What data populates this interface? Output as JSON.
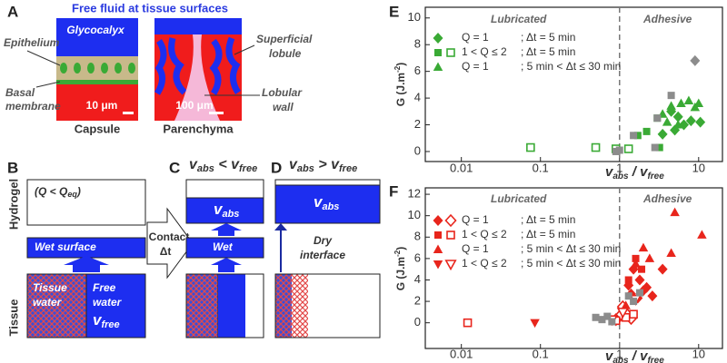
{
  "panels": {
    "A": {
      "label": "A",
      "title": "Free fluid at tissue surfaces",
      "glycocalyx": "Glycocalyx",
      "epithelium": "Epithelium",
      "basal": [
        "Basal",
        "membrane"
      ],
      "scale1": "10 μm",
      "capsule": "Capsule",
      "scale2": "100 μm",
      "parenchyma": "Parenchyma",
      "superficial": [
        "Superficial",
        "lobule"
      ],
      "lobular": [
        "Lobular",
        "wall"
      ]
    },
    "B": {
      "label": "B",
      "hydrogel": "Hydrogel",
      "q": [
        "(Q < Q",
        "eq",
        ")"
      ],
      "wet_surface": "Wet surface",
      "tissue": "Tissue",
      "tissue_water": [
        "Tissue",
        "water"
      ],
      "free_water": [
        "Free",
        "water"
      ],
      "v_free": [
        "v",
        "free"
      ],
      "contact": [
        "Contact",
        "Δt"
      ]
    },
    "C": {
      "label": "C",
      "cond": [
        "v",
        "abs",
        " < ",
        "v",
        "free"
      ],
      "v_abs": [
        "v",
        "abs"
      ],
      "wet": "Wet"
    },
    "D": {
      "label": "D",
      "cond": [
        "v",
        "abs",
        " > ",
        "v",
        "free"
      ],
      "v_abs": [
        "v",
        "abs"
      ],
      "dry": [
        "Dry",
        "interface"
      ]
    }
  },
  "chart_data": [
    {
      "type": "scatter",
      "label": "E",
      "ylabel": [
        "G (J.m",
        "-2",
        ")"
      ],
      "xlabel": [
        "v",
        "abs",
        " / ",
        "v",
        "free"
      ],
      "log_x": true,
      "xlim": [
        0.0035,
        20
      ],
      "ylim": [
        -0.75,
        10.8
      ],
      "xticks": [
        0.01,
        0.1,
        1,
        10
      ],
      "yticks": [
        0,
        2,
        4,
        6,
        8,
        10
      ],
      "regions": [
        "Lubricated",
        "Adhesive"
      ],
      "divider": 1,
      "series": [
        {
          "name": [
            "Q = 1",
            "; Δt = 5 min"
          ],
          "color": "#3aaa35",
          "marker": "diamond",
          "x": [
            4.5,
            5.5,
            6.5,
            8,
            10.5,
            3.5,
            5
          ],
          "values": [
            3.0,
            2.6,
            2.0,
            2.3,
            2.2,
            1.3,
            1.6
          ],
          "hollow": [
            false,
            false,
            false,
            false,
            false,
            false,
            false
          ]
        },
        {
          "name": [
            "1 < Q ≤ 2",
            "; Δt = 5 min"
          ],
          "color": "#3aaa35",
          "marker": "square",
          "x": [
            1.7,
            2.2,
            3.0,
            0.075,
            0.5,
            0.9,
            1.3,
            3.2
          ],
          "values": [
            1.2,
            1.5,
            2.5,
            0.3,
            0.3,
            0.2,
            0.2,
            0.3
          ],
          "hollow": [
            false,
            false,
            false,
            true,
            true,
            true,
            true,
            false
          ]
        },
        {
          "name": [
            "Q = 1",
            "; 5 min < Δt ≤ 30 min"
          ],
          "color": "#3aaa35",
          "marker": "triangle",
          "x": [
            3.5,
            4.5,
            6,
            7.5,
            9,
            10,
            4,
            5.5
          ],
          "values": [
            2.8,
            3.4,
            3.6,
            3.8,
            3.3,
            3.6,
            2.2,
            2.0
          ],
          "hollow": [
            false,
            false,
            false,
            false,
            false,
            false,
            false,
            false
          ]
        },
        {
          "color": "#8c8c8c",
          "marker": "diamond",
          "x": [
            9
          ],
          "values": [
            6.8
          ],
          "hollow": [
            false
          ]
        },
        {
          "color": "#8c8c8c",
          "marker": "square",
          "x": [
            4.5,
            3.0,
            1.5,
            2.8,
            1.0,
            0.9
          ],
          "values": [
            4.2,
            2.5,
            1.2,
            0.3,
            0.1,
            0.0
          ],
          "hollow": [
            false,
            false,
            false,
            false,
            false,
            false
          ]
        }
      ]
    },
    {
      "type": "scatter",
      "label": "F",
      "ylabel": [
        "G (J.m",
        "-2",
        ")"
      ],
      "xlabel": [
        "v",
        "abs",
        " / ",
        "v",
        "free"
      ],
      "log_x": true,
      "xlim": [
        0.0035,
        20
      ],
      "ylim": [
        -2.4,
        12.6
      ],
      "xticks": [
        0.01,
        0.1,
        1,
        10
      ],
      "yticks": [
        0,
        2,
        4,
        6,
        8,
        10,
        12
      ],
      "regions": [
        "Lubricated",
        "Adhesive"
      ],
      "divider": 1,
      "series": [
        {
          "name": [
            "Q = 1",
            "; Δt = 5 min"
          ],
          "color": "#e8251c",
          "marker": "diamond",
          "x": [
            1.3,
            1.5,
            1.8,
            2.2,
            2.6,
            3.5,
            1.4,
            1.7,
            2.0,
            1.0,
            1.2,
            1.4,
            0.9,
            1.1
          ],
          "values": [
            3.5,
            5.0,
            4.0,
            3.3,
            2.5,
            5.0,
            2.7,
            2.3,
            3.0,
            0.6,
            0.9,
            0.4,
            0.3,
            1.5
          ],
          "hollow": [
            false,
            false,
            false,
            false,
            false,
            false,
            false,
            false,
            false,
            true,
            true,
            true,
            true,
            true
          ]
        },
        {
          "name": [
            "1 < Q ≤ 2",
            "; Δt = 5 min"
          ],
          "color": "#e8251c",
          "marker": "square",
          "x": [
            0.012,
            1.6,
            1.3,
            1.9,
            1.2,
            1.5,
            0.9
          ],
          "values": [
            0,
            6.0,
            4.0,
            5.0,
            0.5,
            0.8,
            0.2
          ],
          "hollow": [
            true,
            false,
            false,
            false,
            true,
            true,
            true
          ]
        },
        {
          "name": [
            "Q = 1",
            "; 5 min < Δt ≤ 30 min"
          ],
          "color": "#e8251c",
          "marker": "triangle",
          "x": [
            5,
            11,
            2.0,
            1.6,
            2.4,
            4.5,
            1.2
          ],
          "values": [
            10.3,
            8.2,
            7.0,
            5.5,
            6.0,
            6.5,
            1.6
          ],
          "hollow": [
            false,
            false,
            false,
            false,
            false,
            false,
            false
          ]
        },
        {
          "name": [
            "1 < Q ≤ 2",
            "; 5 min < Δt ≤ 30 min"
          ],
          "color": "#e8251c",
          "marker": "triangle-down",
          "x": [
            0.085,
            1.6,
            1.1,
            0.8
          ],
          "values": [
            0,
            2.2,
            1.0,
            0.3
          ],
          "hollow": [
            false,
            true,
            true,
            true
          ]
        },
        {
          "color": "#8c8c8c",
          "marker": "square",
          "x": [
            0.5,
            0.6,
            0.7,
            1.5,
            1.8,
            1.3,
            0.8
          ],
          "values": [
            0.5,
            0.3,
            0.6,
            2.0,
            2.8,
            2.5,
            0.1
          ],
          "hollow": [
            false,
            false,
            false,
            false,
            false,
            false,
            false
          ]
        }
      ]
    }
  ]
}
